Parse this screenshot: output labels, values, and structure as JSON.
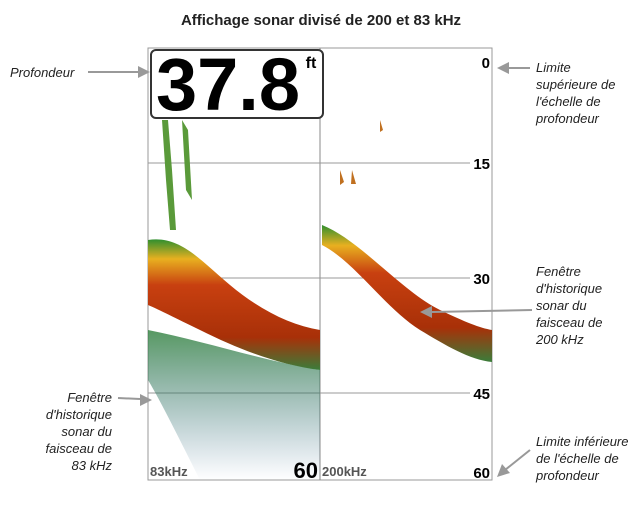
{
  "header": {
    "title": "Affichage sonar divisé de 200 et 83 kHz"
  },
  "display": {
    "depth": {
      "value": "37.8",
      "unit": "ft"
    },
    "scale_labels": [
      "0",
      "15",
      "30",
      "45",
      "60"
    ],
    "left_footer": {
      "frequency": "83kHz",
      "range": "60"
    },
    "right_footer": {
      "frequency": "200kHz"
    }
  },
  "annotations": {
    "depth": {
      "lines": [
        "Profondeur"
      ]
    },
    "upper_limit": {
      "lines": [
        "Limite",
        "supérieure de",
        "l'échelle de",
        "profondeur"
      ]
    },
    "window_200": {
      "lines": [
        "Fenêtre",
        "d'historique",
        "sonar du",
        "faisceau de",
        "200 kHz"
      ]
    },
    "window_83": {
      "lines": [
        "Fenêtre",
        "d'historique",
        "sonar du",
        "faisceau de",
        "83 kHz"
      ]
    },
    "lower_limit": {
      "lines": [
        "Limite inférieure",
        "de l'échelle de",
        "profondeur"
      ]
    }
  }
}
